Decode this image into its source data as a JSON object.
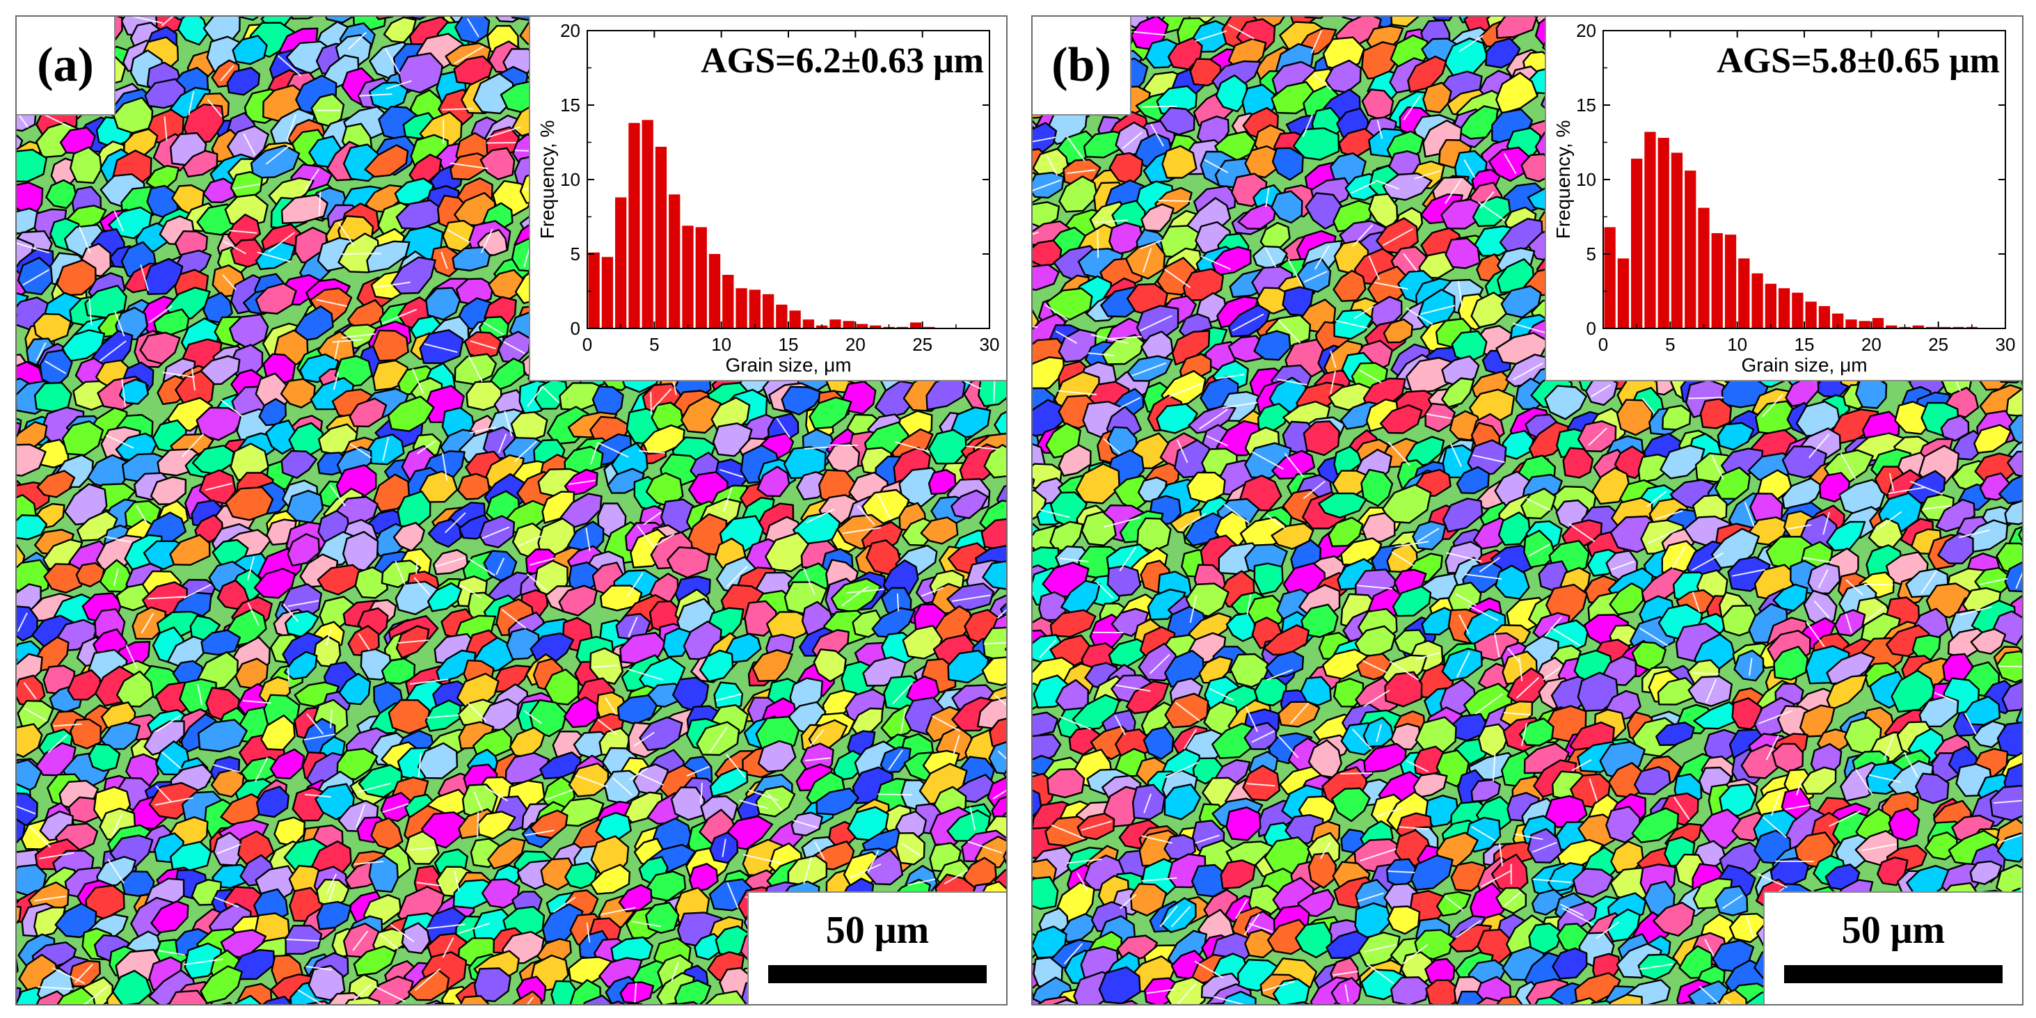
{
  "panels": [
    {
      "label": "(a)",
      "ags": "AGS=6.2±0.63 μm",
      "scale_label": "50 μm",
      "chart_data": {
        "type": "bar",
        "title": "AGS=6.2±0.63 μm",
        "xlabel": "Grain size, μm",
        "ylabel": "Frequency, %",
        "xlim": [
          0,
          30
        ],
        "ylim": [
          0,
          20
        ],
        "xticks": [
          0,
          5,
          10,
          15,
          20,
          25,
          30
        ],
        "yticks": [
          0,
          5,
          10,
          15,
          20
        ],
        "bin_width": 1,
        "bin_starts": [
          0,
          1,
          2,
          3,
          4,
          5,
          6,
          7,
          8,
          9,
          10,
          11,
          12,
          13,
          14,
          15,
          16,
          17,
          18,
          19,
          20,
          21,
          22,
          23,
          24,
          25
        ],
        "values": [
          5.1,
          4.8,
          8.8,
          13.8,
          14.0,
          12.2,
          9.0,
          6.9,
          6.8,
          5.0,
          3.6,
          2.7,
          2.6,
          2.3,
          1.6,
          1.2,
          0.6,
          0.2,
          0.6,
          0.5,
          0.3,
          0.2,
          0.1,
          0.1,
          0.4,
          0.1
        ],
        "bar_color": "#dd0000"
      }
    },
    {
      "label": "(b)",
      "ags": "AGS=5.8±0.65 μm",
      "scale_label": "50 μm",
      "chart_data": {
        "type": "bar",
        "title": "AGS=5.8±0.65 μm",
        "xlabel": "Grain size, μm",
        "ylabel": "Frequency, %",
        "xlim": [
          0,
          30
        ],
        "ylim": [
          0,
          20
        ],
        "xticks": [
          0,
          5,
          10,
          15,
          20,
          25,
          30
        ],
        "yticks": [
          0,
          5,
          10,
          15,
          20
        ],
        "bin_width": 1,
        "bin_starts": [
          0,
          1,
          2,
          3,
          4,
          5,
          6,
          7,
          8,
          9,
          10,
          11,
          12,
          13,
          14,
          15,
          16,
          17,
          18,
          19,
          20,
          21,
          22,
          23,
          24,
          25,
          26,
          27
        ],
        "values": [
          6.8,
          4.7,
          11.4,
          13.2,
          12.8,
          11.8,
          10.6,
          8.1,
          6.4,
          6.3,
          4.7,
          3.7,
          3.0,
          2.7,
          2.4,
          1.8,
          1.5,
          1.0,
          0.6,
          0.5,
          0.7,
          0.2,
          0.1,
          0.2,
          0.1,
          0.1,
          0.1,
          0.1
        ],
        "bar_color": "#dd0000"
      }
    }
  ]
}
